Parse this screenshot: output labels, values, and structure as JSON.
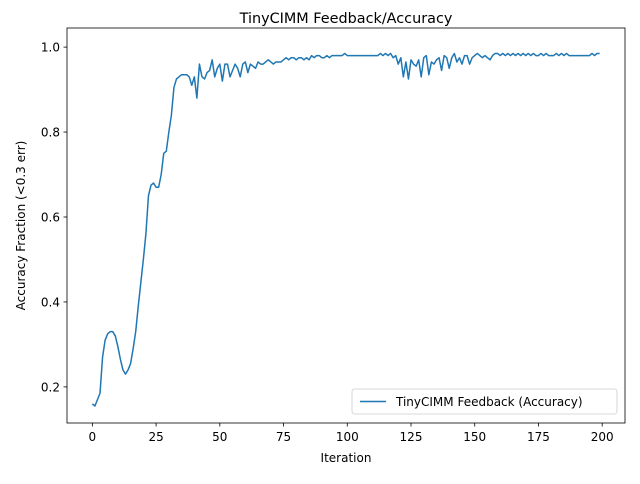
{
  "chart_data": {
    "type": "line",
    "title": "TinyCIMM Feedback/Accuracy",
    "x_label": "Iteration",
    "y_label": "Accuracy Fraction (<0.3 err)",
    "legend": "lower right",
    "xlim": [
      -9.95,
      208.95
    ],
    "xticks": [
      0,
      25,
      50,
      75,
      100,
      125,
      150,
      175,
      200
    ],
    "ylim": [
      0.115,
      1.045
    ],
    "yticks": [
      0.2,
      0.4,
      0.6,
      0.8,
      {
        "value": 1,
        "label": "1.0"
      }
    ],
    "x": [
      0,
      1,
      2,
      3,
      4,
      5,
      6,
      7,
      8,
      9,
      10,
      11,
      12,
      13,
      14,
      15,
      16,
      17,
      18,
      19,
      20,
      21,
      22,
      23,
      24,
      25,
      26,
      27,
      28,
      29,
      30,
      31,
      32,
      33,
      34,
      35,
      36,
      37,
      38,
      39,
      40,
      41,
      42,
      43,
      44,
      45,
      46,
      47,
      48,
      49,
      50,
      51,
      52,
      53,
      54,
      55,
      56,
      57,
      58,
      59,
      60,
      61,
      62,
      63,
      64,
      65,
      66,
      67,
      68,
      69,
      70,
      71,
      72,
      73,
      74,
      75,
      76,
      77,
      78,
      79,
      80,
      81,
      82,
      83,
      84,
      85,
      86,
      87,
      88,
      89,
      90,
      91,
      92,
      93,
      94,
      95,
      96,
      97,
      98,
      99,
      100,
      101,
      102,
      103,
      104,
      105,
      106,
      107,
      108,
      109,
      110,
      111,
      112,
      113,
      114,
      115,
      116,
      117,
      118,
      119,
      120,
      121,
      122,
      123,
      124,
      125,
      126,
      127,
      128,
      129,
      130,
      131,
      132,
      133,
      134,
      135,
      136,
      137,
      138,
      139,
      140,
      141,
      142,
      143,
      144,
      145,
      146,
      147,
      148,
      149,
      150,
      151,
      152,
      153,
      154,
      155,
      156,
      157,
      158,
      159,
      160,
      161,
      162,
      163,
      164,
      165,
      166,
      167,
      168,
      169,
      170,
      171,
      172,
      173,
      174,
      175,
      176,
      177,
      178,
      179,
      180,
      181,
      182,
      183,
      184,
      185,
      186,
      187,
      188,
      189,
      190,
      191,
      192,
      193,
      194,
      195,
      196,
      197,
      198,
      199
    ],
    "series": [
      {
        "name": "TinyCIMM Feedback (Accuracy)",
        "color": "#1f77b4",
        "values": [
          0.16,
          0.155,
          0.17,
          0.185,
          0.27,
          0.31,
          0.325,
          0.33,
          0.33,
          0.32,
          0.295,
          0.265,
          0.24,
          0.23,
          0.24,
          0.255,
          0.29,
          0.33,
          0.39,
          0.445,
          0.5,
          0.56,
          0.65,
          0.675,
          0.68,
          0.67,
          0.67,
          0.7,
          0.75,
          0.755,
          0.8,
          0.84,
          0.905,
          0.925,
          0.93,
          0.935,
          0.935,
          0.935,
          0.93,
          0.91,
          0.93,
          0.88,
          0.96,
          0.93,
          0.925,
          0.94,
          0.945,
          0.97,
          0.93,
          0.95,
          0.96,
          0.92,
          0.96,
          0.96,
          0.93,
          0.945,
          0.96,
          0.95,
          0.93,
          0.96,
          0.965,
          0.94,
          0.96,
          0.955,
          0.95,
          0.965,
          0.96,
          0.96,
          0.965,
          0.97,
          0.965,
          0.96,
          0.965,
          0.965,
          0.965,
          0.97,
          0.975,
          0.97,
          0.975,
          0.975,
          0.97,
          0.975,
          0.975,
          0.97,
          0.975,
          0.97,
          0.98,
          0.975,
          0.98,
          0.98,
          0.975,
          0.975,
          0.98,
          0.975,
          0.98,
          0.98,
          0.98,
          0.98,
          0.98,
          0.985,
          0.98,
          0.98,
          0.98,
          0.98,
          0.98,
          0.98,
          0.98,
          0.98,
          0.98,
          0.98,
          0.98,
          0.98,
          0.98,
          0.985,
          0.98,
          0.985,
          0.98,
          0.985,
          0.975,
          0.98,
          0.96,
          0.975,
          0.93,
          0.965,
          0.925,
          0.97,
          0.96,
          0.955,
          0.97,
          0.93,
          0.975,
          0.98,
          0.935,
          0.965,
          0.96,
          0.97,
          0.975,
          0.945,
          0.98,
          0.975,
          0.95,
          0.975,
          0.985,
          0.965,
          0.975,
          0.96,
          0.98,
          0.98,
          0.96,
          0.975,
          0.98,
          0.985,
          0.98,
          0.975,
          0.98,
          0.975,
          0.97,
          0.98,
          0.985,
          0.985,
          0.98,
          0.985,
          0.98,
          0.985,
          0.98,
          0.985,
          0.98,
          0.985,
          0.98,
          0.985,
          0.98,
          0.985,
          0.98,
          0.985,
          0.98,
          0.98,
          0.985,
          0.98,
          0.985,
          0.98,
          0.98,
          0.98,
          0.985,
          0.98,
          0.985,
          0.98,
          0.985,
          0.98,
          0.98,
          0.98,
          0.98,
          0.98,
          0.98,
          0.98,
          0.98,
          0.98,
          0.985,
          0.98,
          0.985,
          0.985
        ]
      }
    ]
  }
}
